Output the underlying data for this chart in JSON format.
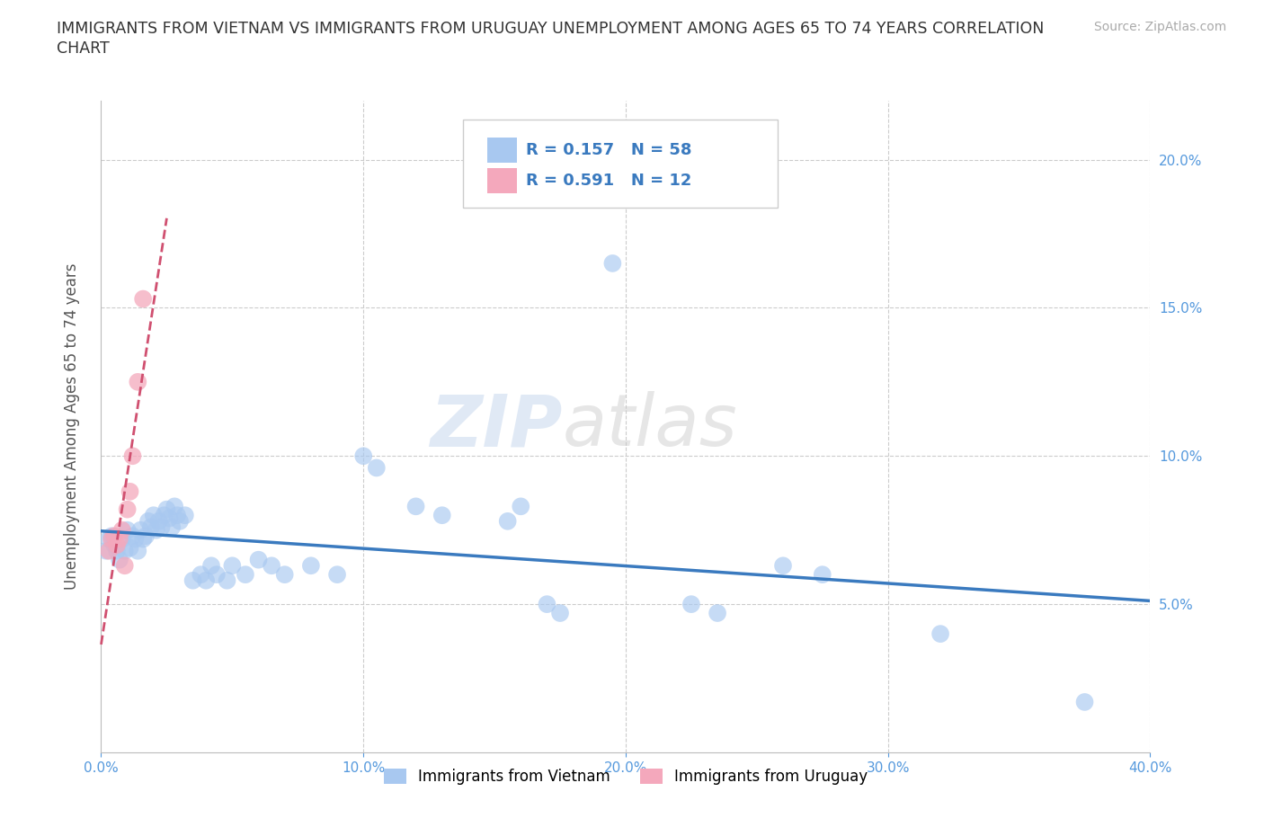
{
  "title_line1": "IMMIGRANTS FROM VIETNAM VS IMMIGRANTS FROM URUGUAY UNEMPLOYMENT AMONG AGES 65 TO 74 YEARS CORRELATION",
  "title_line2": "CHART",
  "source": "Source: ZipAtlas.com",
  "ylabel": "Unemployment Among Ages 65 to 74 years",
  "xlim": [
    0.0,
    0.4
  ],
  "ylim": [
    0.0,
    0.22
  ],
  "xticks": [
    0.0,
    0.1,
    0.2,
    0.3,
    0.4
  ],
  "xticklabels": [
    "0.0%",
    "10.0%",
    "20.0%",
    "30.0%",
    "40.0%"
  ],
  "yticks": [
    0.0,
    0.05,
    0.1,
    0.15,
    0.2
  ],
  "yticklabels_right": [
    "",
    "5.0%",
    "10.0%",
    "15.0%",
    "20.0%"
  ],
  "vietnam_color": "#a8c8f0",
  "uruguay_color": "#f4a8bc",
  "vietnam_R": 0.157,
  "vietnam_N": 58,
  "uruguay_R": 0.591,
  "uruguay_N": 12,
  "legend_label_vietnam": "Immigrants from Vietnam",
  "legend_label_uruguay": "Immigrants from Uruguay",
  "watermark_zip": "ZIP",
  "watermark_atlas": "atlas",
  "background_color": "#ffffff",
  "grid_color": "#cccccc",
  "vietnam_line_color": "#3a7abf",
  "uruguay_line_color": "#d05070",
  "title_color": "#333333",
  "tick_color": "#5599dd",
  "legend_R_color": "#3a7abf",
  "vietnam_scatter": [
    [
      0.002,
      0.068
    ],
    [
      0.003,
      0.072
    ],
    [
      0.004,
      0.073
    ],
    [
      0.005,
      0.07
    ],
    [
      0.006,
      0.068
    ],
    [
      0.007,
      0.065
    ],
    [
      0.008,
      0.072
    ],
    [
      0.009,
      0.068
    ],
    [
      0.01,
      0.075
    ],
    [
      0.011,
      0.069
    ],
    [
      0.012,
      0.073
    ],
    [
      0.013,
      0.072
    ],
    [
      0.014,
      0.068
    ],
    [
      0.015,
      0.075
    ],
    [
      0.016,
      0.072
    ],
    [
      0.017,
      0.073
    ],
    [
      0.018,
      0.078
    ],
    [
      0.019,
      0.076
    ],
    [
      0.02,
      0.08
    ],
    [
      0.021,
      0.075
    ],
    [
      0.022,
      0.078
    ],
    [
      0.023,
      0.076
    ],
    [
      0.024,
      0.08
    ],
    [
      0.025,
      0.082
    ],
    [
      0.026,
      0.079
    ],
    [
      0.027,
      0.076
    ],
    [
      0.028,
      0.083
    ],
    [
      0.029,
      0.08
    ],
    [
      0.03,
      0.078
    ],
    [
      0.032,
      0.08
    ],
    [
      0.035,
      0.058
    ],
    [
      0.038,
      0.06
    ],
    [
      0.04,
      0.058
    ],
    [
      0.042,
      0.063
    ],
    [
      0.044,
      0.06
    ],
    [
      0.048,
      0.058
    ],
    [
      0.05,
      0.063
    ],
    [
      0.055,
      0.06
    ],
    [
      0.06,
      0.065
    ],
    [
      0.065,
      0.063
    ],
    [
      0.07,
      0.06
    ],
    [
      0.08,
      0.063
    ],
    [
      0.09,
      0.06
    ],
    [
      0.1,
      0.1
    ],
    [
      0.105,
      0.096
    ],
    [
      0.12,
      0.083
    ],
    [
      0.13,
      0.08
    ],
    [
      0.155,
      0.078
    ],
    [
      0.16,
      0.083
    ],
    [
      0.17,
      0.05
    ],
    [
      0.175,
      0.047
    ],
    [
      0.195,
      0.165
    ],
    [
      0.225,
      0.05
    ],
    [
      0.235,
      0.047
    ],
    [
      0.26,
      0.063
    ],
    [
      0.275,
      0.06
    ],
    [
      0.32,
      0.04
    ],
    [
      0.375,
      0.017
    ]
  ],
  "uruguay_scatter": [
    [
      0.003,
      0.068
    ],
    [
      0.004,
      0.072
    ],
    [
      0.005,
      0.073
    ],
    [
      0.006,
      0.07
    ],
    [
      0.007,
      0.072
    ],
    [
      0.008,
      0.075
    ],
    [
      0.009,
      0.063
    ],
    [
      0.01,
      0.082
    ],
    [
      0.011,
      0.088
    ],
    [
      0.012,
      0.1
    ],
    [
      0.014,
      0.125
    ],
    [
      0.016,
      0.153
    ]
  ]
}
